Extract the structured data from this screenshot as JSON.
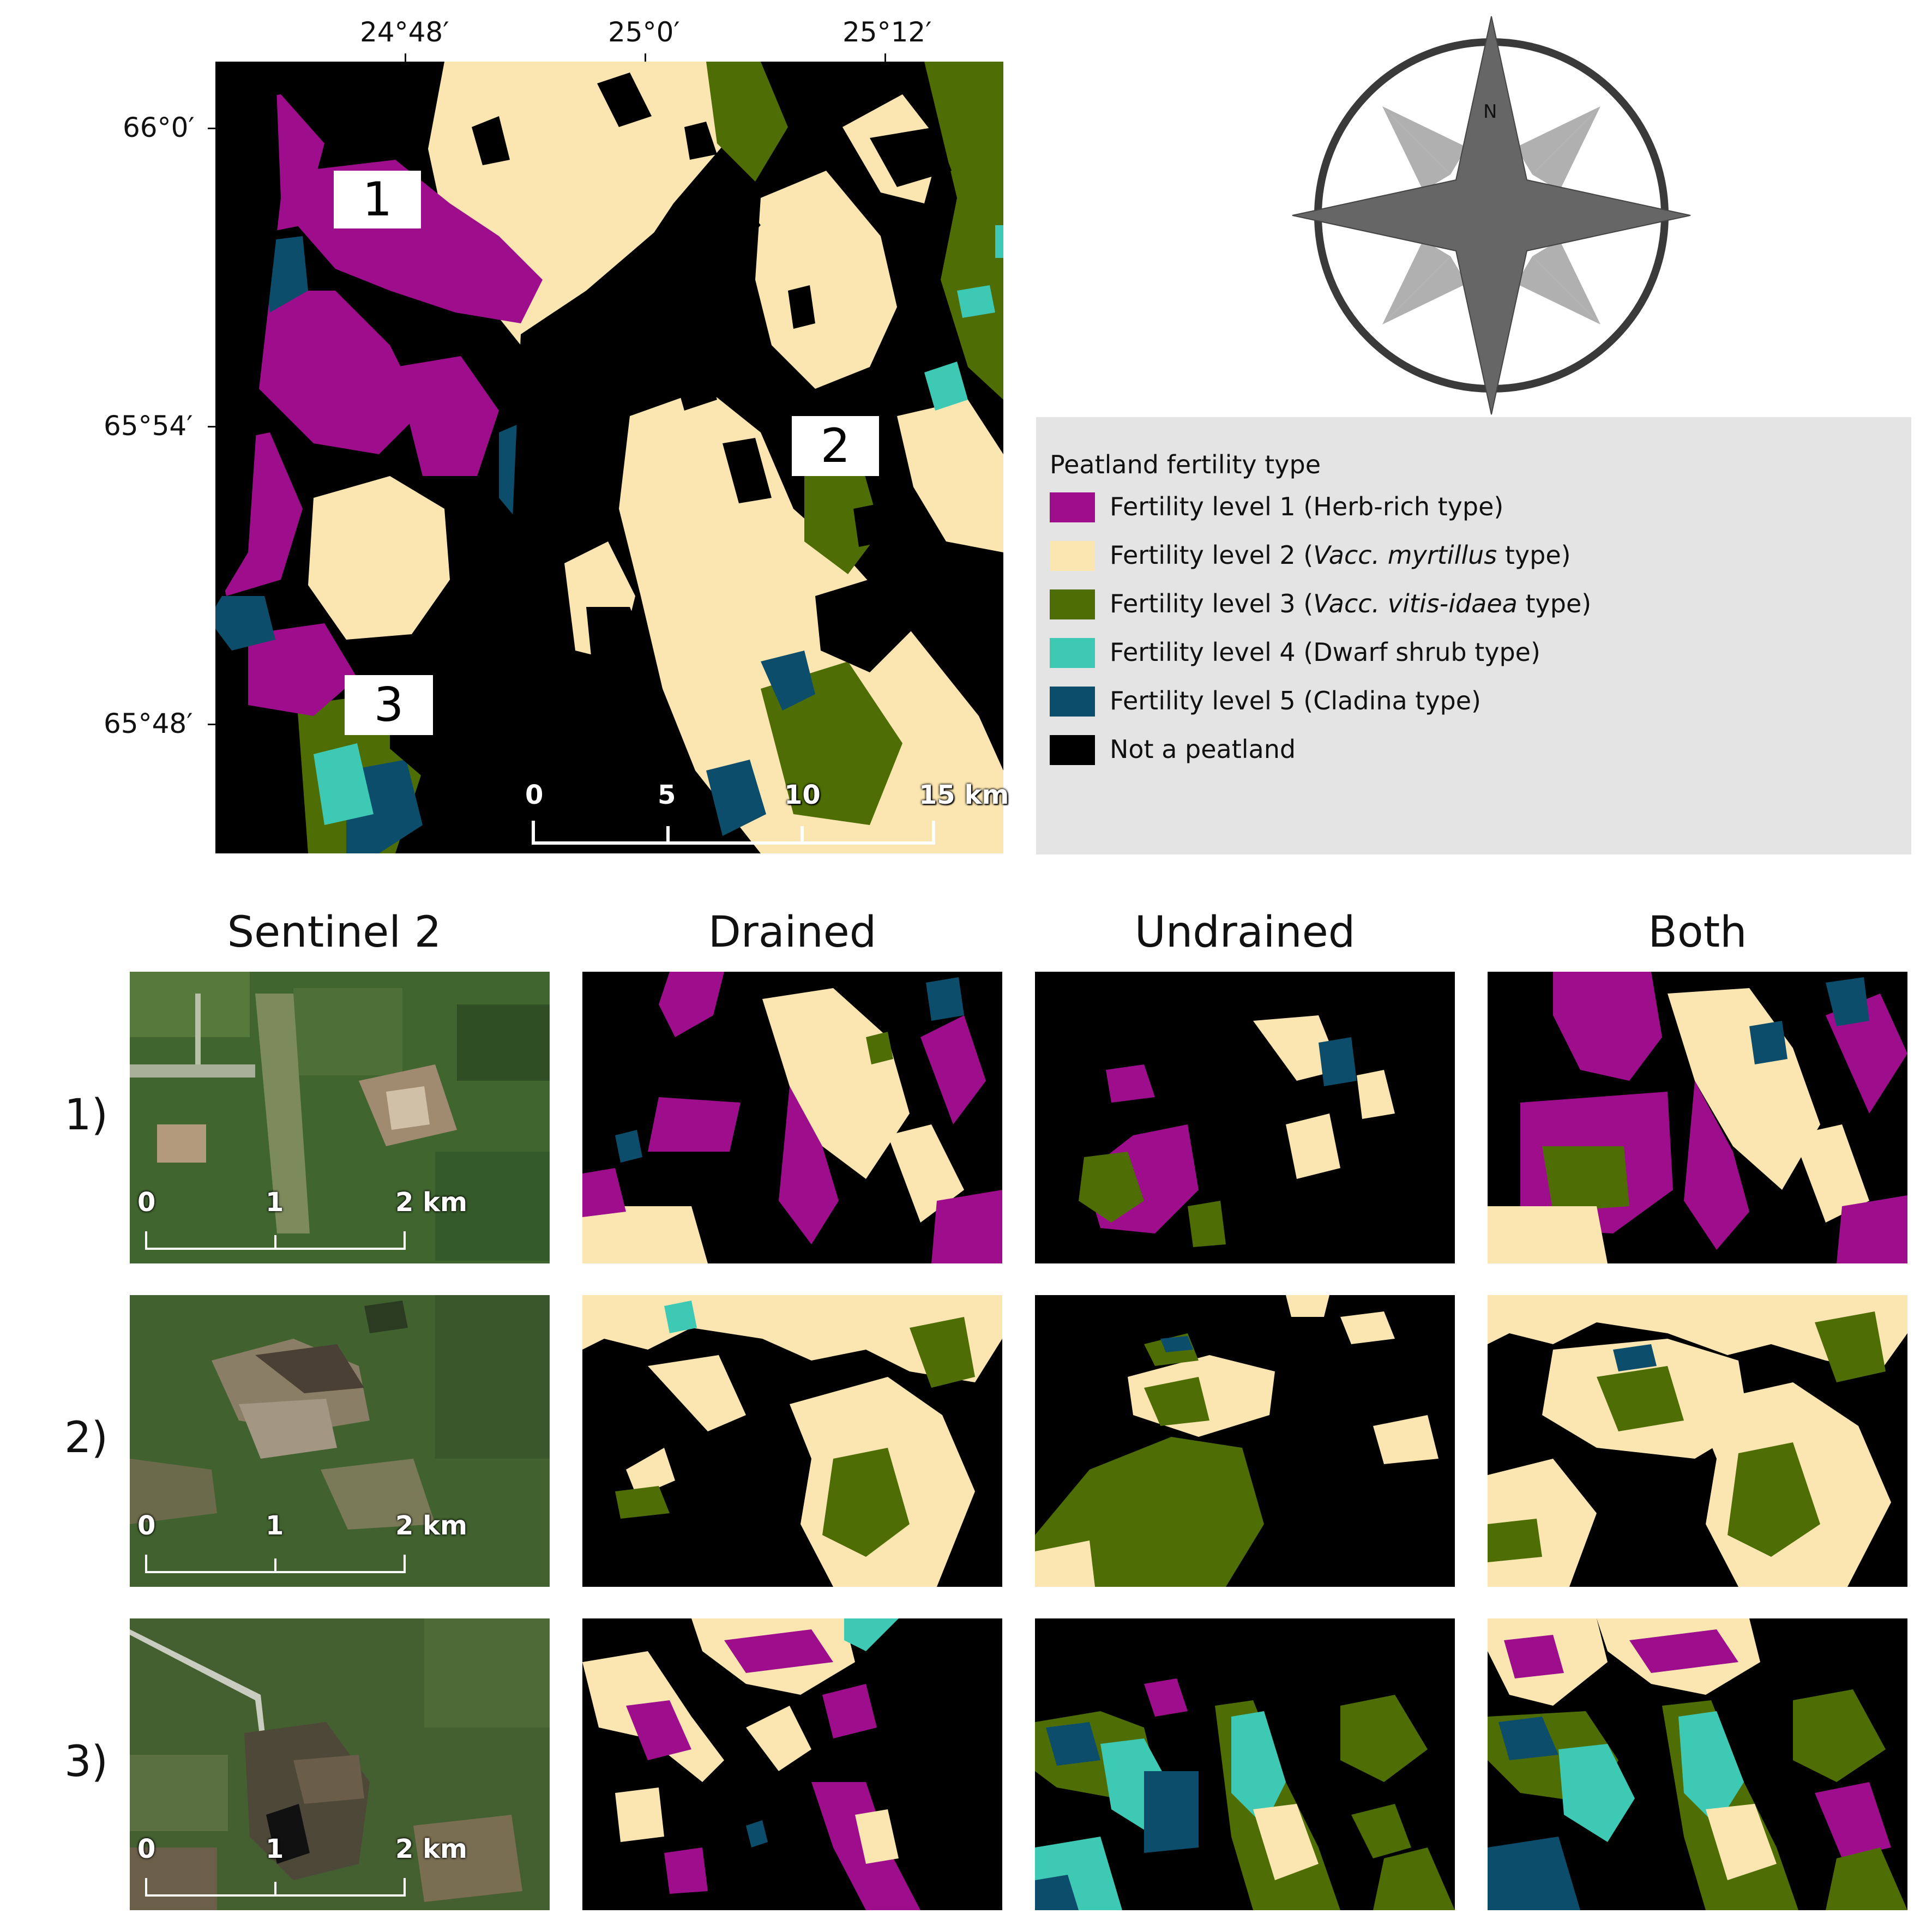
{
  "main_map": {
    "lon_labels": [
      "24°48′",
      "25°0′",
      "25°12′"
    ],
    "lat_labels": [
      "66°0′",
      "65°54′",
      "65°48′"
    ],
    "regions": [
      "1",
      "2",
      "3"
    ],
    "scale": {
      "ticks": [
        "0",
        "5",
        "10",
        "15 km"
      ]
    }
  },
  "compass": {
    "north_label": "N"
  },
  "legend": {
    "title": "Peatland fertility type",
    "items": [
      {
        "pre": "Fertility level 1 (Herb-rich type)",
        "em": "",
        "post": "",
        "color": "#9e0e8c"
      },
      {
        "pre": "Fertility level 2 (",
        "em": "Vacc. myrtillus",
        "post": " type)",
        "color": "#fbe6b2"
      },
      {
        "pre": "Fertility level 3 (",
        "em": "Vacc. vitis-idaea",
        "post": " type)",
        "color": "#4e6e05"
      },
      {
        "pre": "Fertility level 4 (Dwarf shrub type)",
        "em": "",
        "post": "",
        "color": "#3ec9b4"
      },
      {
        "pre": "Fertility level 5 (Cladina type)",
        "em": "",
        "post": "",
        "color": "#0c4d6b"
      },
      {
        "pre": "Not a peatland",
        "em": "",
        "post": "",
        "color": "#000000"
      }
    ]
  },
  "grid": {
    "columns": [
      "Sentinel 2",
      "Drained",
      "Undrained",
      "Both"
    ],
    "rows": [
      "1)",
      "2)",
      "3)"
    ],
    "scale_ticks": [
      "0",
      "1",
      "2 km"
    ]
  }
}
